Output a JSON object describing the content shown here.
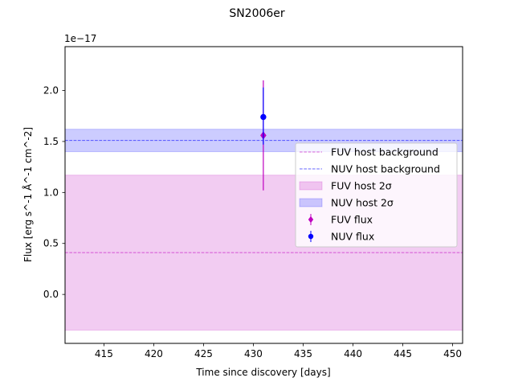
{
  "chart_data": {
    "type": "scatter",
    "title": "SN2006er",
    "xlabel": "Time since discovery [days]",
    "ylabel": "Flux [erg s^-1 Å^-1 cm^-2]",
    "y_offset_label": "1e−17",
    "xlim": [
      411.1,
      451.0
    ],
    "ylim": [
      -0.48,
      2.43
    ],
    "x_ticks": [
      {
        "value": 415,
        "label": "415"
      },
      {
        "value": 420,
        "label": "420"
      },
      {
        "value": 425,
        "label": "425"
      },
      {
        "value": 430,
        "label": "430"
      },
      {
        "value": 435,
        "label": "435"
      },
      {
        "value": 440,
        "label": "440"
      },
      {
        "value": 445,
        "label": "445"
      },
      {
        "value": 450,
        "label": "450"
      }
    ],
    "y_ticks": [
      {
        "value": 0.0,
        "label": "0.0"
      },
      {
        "value": 0.5,
        "label": "0.5"
      },
      {
        "value": 1.0,
        "label": "1.0"
      },
      {
        "value": 1.5,
        "label": "1.5"
      },
      {
        "value": 2.0,
        "label": "2.0"
      }
    ],
    "grid": false,
    "legend_position": "center-right",
    "bands": [
      {
        "name": "FUV host 2σ",
        "ymin": -0.35,
        "ymax": 1.17,
        "color": "#bf00bf",
        "alpha": 0.2
      },
      {
        "name": "NUV host 2σ",
        "ymin": 1.4,
        "ymax": 1.62,
        "color": "#0000ff",
        "alpha": 0.2
      }
    ],
    "hlines": [
      {
        "name": "FUV host background",
        "y": 0.41,
        "color": "#bf00bf",
        "style": "dashed"
      },
      {
        "name": "NUV host background",
        "y": 1.51,
        "color": "#0000ff",
        "style": "dashed"
      }
    ],
    "series": [
      {
        "name": "FUV flux",
        "marker": "diamond",
        "color": "#bf00bf",
        "points": [
          {
            "x": 431.0,
            "y": 1.56,
            "yerr_low": 1.02,
            "yerr_high": 2.1
          }
        ]
      },
      {
        "name": "NUV flux",
        "marker": "circle",
        "color": "#0000ff",
        "points": [
          {
            "x": 431.0,
            "y": 1.74,
            "yerr_low": 1.47,
            "yerr_high": 2.03
          }
        ]
      }
    ],
    "legend_order": [
      "FUV host background",
      "NUV host background",
      "FUV host 2σ",
      "NUV host 2σ",
      "FUV flux",
      "NUV flux"
    ]
  }
}
